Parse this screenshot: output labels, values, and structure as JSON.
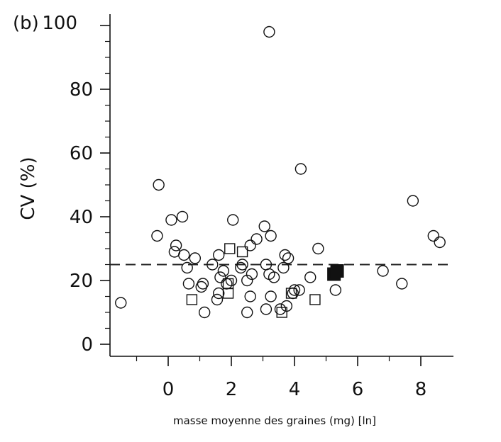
{
  "chart_data": {
    "type": "scatter",
    "panel_label": "(b)",
    "title": "",
    "xlabel": "masse moyenne des graines (mg) [ln]",
    "ylabel": "CV (%)",
    "xlim": [
      -1.9,
      9.0
    ],
    "ylim": [
      -3.5,
      100
    ],
    "xticks": [
      0,
      2,
      4,
      6,
      8
    ],
    "yticks": [
      0,
      20,
      40,
      60,
      80,
      100
    ],
    "grid": false,
    "legend": "none",
    "reference_line": {
      "y": 25,
      "style": "dashed"
    },
    "series": [
      {
        "marker": "open-circle",
        "points": [
          [
            -1.5,
            13
          ],
          [
            -0.3,
            50
          ],
          [
            -0.35,
            34
          ],
          [
            0.1,
            39
          ],
          [
            0.45,
            40
          ],
          [
            0.25,
            31
          ],
          [
            0.2,
            29
          ],
          [
            0.5,
            28
          ],
          [
            0.6,
            24
          ],
          [
            0.85,
            27
          ],
          [
            0.65,
            19
          ],
          [
            1.05,
            18
          ],
          [
            1.1,
            19
          ],
          [
            1.15,
            10
          ],
          [
            1.4,
            25
          ],
          [
            1.55,
            14
          ],
          [
            1.6,
            16
          ],
          [
            1.6,
            28
          ],
          [
            1.65,
            21
          ],
          [
            1.75,
            23
          ],
          [
            1.85,
            19
          ],
          [
            2.0,
            20
          ],
          [
            2.05,
            39
          ],
          [
            2.3,
            24
          ],
          [
            2.35,
            25
          ],
          [
            2.5,
            10
          ],
          [
            2.5,
            20
          ],
          [
            2.6,
            15
          ],
          [
            2.6,
            31
          ],
          [
            2.65,
            22
          ],
          [
            2.8,
            33
          ],
          [
            3.05,
            37
          ],
          [
            3.1,
            11
          ],
          [
            3.1,
            25
          ],
          [
            3.2,
            22
          ],
          [
            3.25,
            15
          ],
          [
            3.25,
            34
          ],
          [
            3.35,
            21
          ],
          [
            3.55,
            11
          ],
          [
            3.65,
            24
          ],
          [
            3.7,
            28
          ],
          [
            3.75,
            12
          ],
          [
            3.8,
            27
          ],
          [
            3.95,
            16
          ],
          [
            4.0,
            17
          ],
          [
            4.15,
            17
          ],
          [
            4.2,
            55
          ],
          [
            4.5,
            21
          ],
          [
            4.75,
            30
          ],
          [
            5.3,
            17
          ],
          [
            6.8,
            23
          ],
          [
            7.4,
            19
          ],
          [
            7.75,
            45
          ],
          [
            8.4,
            34
          ],
          [
            8.6,
            32
          ],
          [
            3.2,
            98
          ]
        ]
      },
      {
        "marker": "open-square",
        "points": [
          [
            0.75,
            14
          ],
          [
            1.95,
            30
          ],
          [
            2.35,
            29
          ],
          [
            1.9,
            16
          ],
          [
            1.9,
            19
          ],
          [
            3.6,
            10
          ],
          [
            3.9,
            16
          ],
          [
            4.65,
            14
          ]
        ]
      },
      {
        "marker": "filled-square",
        "points": [
          [
            5.25,
            22
          ],
          [
            5.35,
            23
          ]
        ]
      }
    ]
  }
}
